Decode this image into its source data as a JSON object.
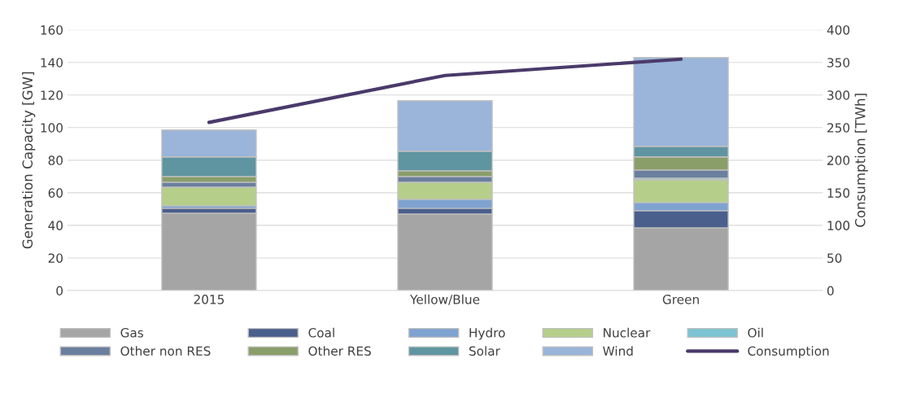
{
  "chart_data": {
    "type": "bar",
    "stacked": true,
    "categories": [
      "2015",
      "Yellow/Blue",
      "Green"
    ],
    "ylabel": "Generation Capacity [GW]",
    "y2label": "Consumption [TWh]",
    "ylim": [
      0,
      160
    ],
    "yticks": [
      0,
      20,
      40,
      60,
      80,
      100,
      120,
      140,
      160
    ],
    "y2lim": [
      0,
      400
    ],
    "y2ticks": [
      0,
      50,
      100,
      150,
      200,
      250,
      300,
      350,
      400
    ],
    "grid": "y",
    "legend": "bottom",
    "marker": "none",
    "line_style": "solid",
    "series": [
      {
        "name": "Gas",
        "color": "#a5a5a5",
        "values": [
          47.5,
          47,
          38.5
        ]
      },
      {
        "name": "Coal",
        "color": "#4a5f8c",
        "values": [
          3,
          3.5,
          10.5
        ]
      },
      {
        "name": "Hydro",
        "color": "#7fa3d0",
        "values": [
          1.5,
          5.5,
          5
        ]
      },
      {
        "name": "Nuclear",
        "color": "#b5cf8a",
        "values": [
          11.5,
          10.5,
          14
        ]
      },
      {
        "name": "Oil",
        "color": "#7dc3d3",
        "values": [
          null,
          null,
          1
        ]
      },
      {
        "name": "Other non RES",
        "color": "#6a7f9e",
        "values": [
          3,
          3.5,
          5
        ]
      },
      {
        "name": "Other RES",
        "color": "#8a9e6a",
        "values": [
          3.5,
          3.5,
          8
        ]
      },
      {
        "name": "Solar",
        "color": "#5f95a0",
        "values": [
          12,
          12,
          6.5
        ]
      },
      {
        "name": "Wind",
        "color": "#9ab4da",
        "values": [
          16.5,
          31,
          54.5
        ]
      },
      {
        "name": "Consumption",
        "color": "#4a3a6a",
        "type": "line",
        "axis": "y2",
        "values": [
          258,
          330,
          355
        ]
      }
    ]
  }
}
